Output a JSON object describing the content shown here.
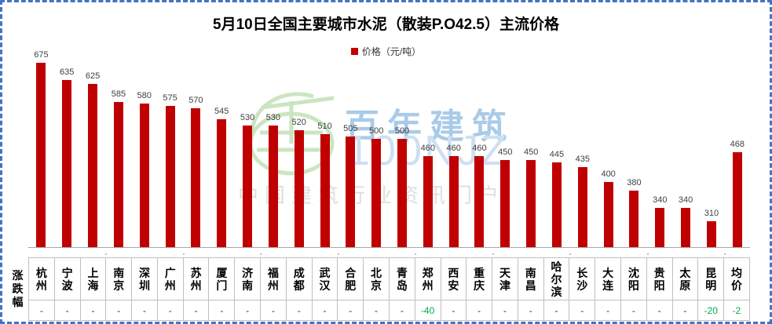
{
  "frame": {
    "border_color": "#4472C4",
    "background": "#FFFFFF"
  },
  "title": "5月10日全国主要城市水泥（散装P.O42.5）主流价格",
  "legend": {
    "label": "价格（元/吨）",
    "swatch_color": "#C00000"
  },
  "watermark": {
    "logo_icon": "hundred-year-building-emblem-icon",
    "brand": "百年建筑",
    "code": "100NJZ",
    "slogan": "中国建筑行业资讯门户"
  },
  "table": {
    "row_label": "涨跌幅",
    "negative_color": "#00B050"
  },
  "chart_data": {
    "type": "bar",
    "title": "5月10日全国主要城市水泥（散装P.O42.5）主流价格",
    "categories": [
      "杭州",
      "宁波",
      "上海",
      "南京",
      "深圳",
      "广州",
      "苏州",
      "厦门",
      "济南",
      "福州",
      "成都",
      "武汉",
      "合肥",
      "北京",
      "青岛",
      "郑州",
      "西安",
      "重庆",
      "天津",
      "南昌",
      "哈尔滨",
      "长沙",
      "大连",
      "沈阳",
      "贵阳",
      "太原",
      "昆明",
      "均价"
    ],
    "series": [
      {
        "name": "价格（元/吨）",
        "color": "#C00000",
        "values": [
          675,
          635,
          625,
          585,
          580,
          575,
          570,
          545,
          530,
          530,
          520,
          510,
          505,
          500,
          500,
          460,
          460,
          460,
          450,
          450,
          445,
          435,
          400,
          380,
          340,
          340,
          310,
          468
        ]
      }
    ],
    "changes": [
      "-",
      "-",
      "-",
      "-",
      "-",
      "-",
      "-",
      "-",
      "-",
      "-",
      "-",
      "-",
      "-",
      "-",
      "-",
      "-40",
      "-",
      "-",
      "-",
      "-",
      "-",
      "-",
      "-",
      "-",
      "-",
      "-",
      "-20",
      "-2"
    ],
    "xlabel": "",
    "ylabel": "价格（元/吨）",
    "ylim": [
      250,
      700
    ],
    "grid": false,
    "data_labels": "outside-end",
    "legend_position": "top-center"
  }
}
